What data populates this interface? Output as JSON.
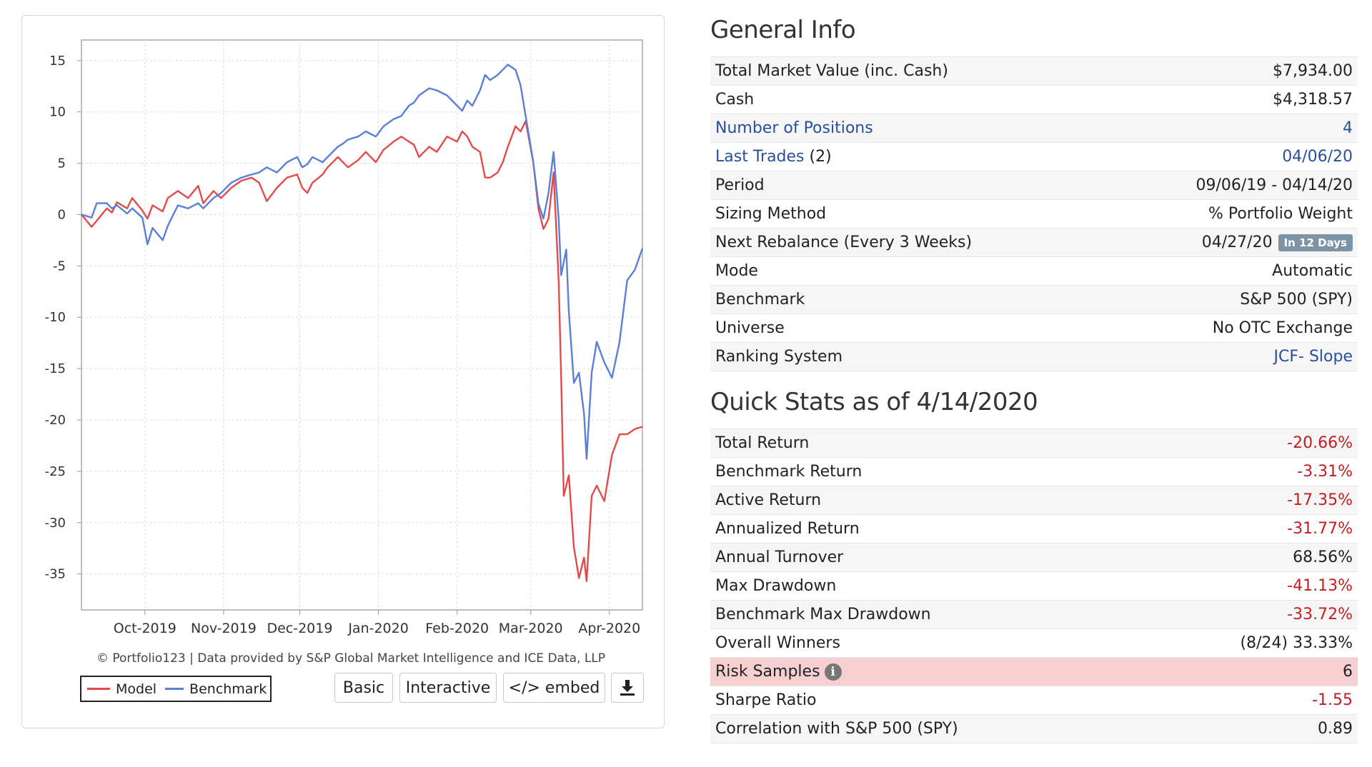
{
  "chart_data": {
    "type": "line",
    "x_tick_labels": [
      "Oct-2019",
      "Nov-2019",
      "Dec-2019",
      "Jan-2020",
      "Feb-2020",
      "Mar-2020",
      "Apr-2020"
    ],
    "y_tick_labels": [
      "15",
      "10",
      "5",
      "0",
      "-5",
      "-10",
      "-15",
      "-20",
      "-25",
      "-30",
      "-35"
    ],
    "ylim": [
      -38.5,
      17
    ],
    "xlim": [
      "2019-09-06",
      "2020-04-14"
    ],
    "grid": true,
    "legend_position": "bottom-left",
    "series": [
      {
        "name": "Model",
        "color": "#e34a4a",
        "points": [
          [
            "2019-09-06",
            0
          ],
          [
            "2019-09-10",
            -1.2
          ],
          [
            "2019-09-12",
            -0.6
          ],
          [
            "2019-09-16",
            0.6
          ],
          [
            "2019-09-18",
            0.2
          ],
          [
            "2019-09-20",
            1.2
          ],
          [
            "2019-09-24",
            0.6
          ],
          [
            "2019-09-26",
            1.6
          ],
          [
            "2019-09-30",
            0.4
          ],
          [
            "2019-10-02",
            -0.4
          ],
          [
            "2019-10-04",
            0.9
          ],
          [
            "2019-10-08",
            0.3
          ],
          [
            "2019-10-10",
            1.6
          ],
          [
            "2019-10-14",
            2.3
          ],
          [
            "2019-10-18",
            1.6
          ],
          [
            "2019-10-22",
            2.8
          ],
          [
            "2019-10-24",
            1.1
          ],
          [
            "2019-10-28",
            2.3
          ],
          [
            "2019-10-31",
            1.6
          ],
          [
            "2019-11-04",
            2.6
          ],
          [
            "2019-11-08",
            3.3
          ],
          [
            "2019-11-12",
            3.6
          ],
          [
            "2019-11-15",
            3.1
          ],
          [
            "2019-11-18",
            1.3
          ],
          [
            "2019-11-22",
            2.6
          ],
          [
            "2019-11-26",
            3.6
          ],
          [
            "2019-11-30",
            3.9
          ],
          [
            "2019-12-02",
            2.6
          ],
          [
            "2019-12-04",
            2.1
          ],
          [
            "2019-12-06",
            3.1
          ],
          [
            "2019-12-10",
            3.9
          ],
          [
            "2019-12-12",
            4.6
          ],
          [
            "2019-12-16",
            5.6
          ],
          [
            "2019-12-18",
            5.1
          ],
          [
            "2019-12-20",
            4.6
          ],
          [
            "2019-12-24",
            5.3
          ],
          [
            "2019-12-27",
            6.1
          ],
          [
            "2019-12-31",
            5.1
          ],
          [
            "2020-01-03",
            6.3
          ],
          [
            "2020-01-07",
            7.1
          ],
          [
            "2020-01-10",
            7.6
          ],
          [
            "2020-01-13",
            7.1
          ],
          [
            "2020-01-15",
            6.8
          ],
          [
            "2020-01-17",
            5.6
          ],
          [
            "2020-01-21",
            6.6
          ],
          [
            "2020-01-24",
            6.1
          ],
          [
            "2020-01-28",
            7.6
          ],
          [
            "2020-02-01",
            7.1
          ],
          [
            "2020-02-03",
            8.1
          ],
          [
            "2020-02-05",
            7.6
          ],
          [
            "2020-02-07",
            6.6
          ],
          [
            "2020-02-10",
            6.1
          ],
          [
            "2020-02-12",
            3.6
          ],
          [
            "2020-02-14",
            3.6
          ],
          [
            "2020-02-17",
            4.1
          ],
          [
            "2020-02-19",
            5.1
          ],
          [
            "2020-02-21",
            6.6
          ],
          [
            "2020-02-24",
            8.6
          ],
          [
            "2020-02-26",
            8.1
          ],
          [
            "2020-02-28",
            9.1
          ],
          [
            "2020-03-02",
            5.1
          ],
          [
            "2020-03-04",
            0.6
          ],
          [
            "2020-03-06",
            -1.4
          ],
          [
            "2020-03-08",
            -0.4
          ],
          [
            "2020-03-10",
            4.1
          ],
          [
            "2020-03-12",
            -6.4
          ],
          [
            "2020-03-13",
            -15.9
          ],
          [
            "2020-03-14",
            -27.4
          ],
          [
            "2020-03-16",
            -25.4
          ],
          [
            "2020-03-18",
            -32.4
          ],
          [
            "2020-03-20",
            -35.4
          ],
          [
            "2020-03-22",
            -33.4
          ],
          [
            "2020-03-23",
            -35.7
          ],
          [
            "2020-03-25",
            -27.4
          ],
          [
            "2020-03-27",
            -26.4
          ],
          [
            "2020-03-30",
            -27.9
          ],
          [
            "2020-04-02",
            -23.4
          ],
          [
            "2020-04-05",
            -21.4
          ],
          [
            "2020-04-08",
            -21.4
          ],
          [
            "2020-04-11",
            -20.9
          ],
          [
            "2020-04-14",
            -20.66
          ]
        ]
      },
      {
        "name": "Benchmark",
        "color": "#5b7fd6",
        "points": [
          [
            "2019-09-06",
            0
          ],
          [
            "2019-09-10",
            -0.3
          ],
          [
            "2019-09-12",
            1.1
          ],
          [
            "2019-09-16",
            1.1
          ],
          [
            "2019-09-18",
            0.6
          ],
          [
            "2019-09-20",
            0.9
          ],
          [
            "2019-09-24",
            0.1
          ],
          [
            "2019-09-26",
            0.6
          ],
          [
            "2019-09-30",
            -0.3
          ],
          [
            "2019-10-02",
            -2.9
          ],
          [
            "2019-10-04",
            -1.3
          ],
          [
            "2019-10-08",
            -2.5
          ],
          [
            "2019-10-10",
            -1.1
          ],
          [
            "2019-10-14",
            0.9
          ],
          [
            "2019-10-18",
            0.6
          ],
          [
            "2019-10-22",
            1.1
          ],
          [
            "2019-10-24",
            0.6
          ],
          [
            "2019-10-28",
            1.6
          ],
          [
            "2019-10-31",
            2.1
          ],
          [
            "2019-11-04",
            3.1
          ],
          [
            "2019-11-08",
            3.6
          ],
          [
            "2019-11-12",
            3.9
          ],
          [
            "2019-11-15",
            4.1
          ],
          [
            "2019-11-18",
            4.6
          ],
          [
            "2019-11-22",
            4.1
          ],
          [
            "2019-11-26",
            5.1
          ],
          [
            "2019-11-30",
            5.6
          ],
          [
            "2019-12-02",
            4.6
          ],
          [
            "2019-12-04",
            4.9
          ],
          [
            "2019-12-06",
            5.6
          ],
          [
            "2019-12-10",
            5.1
          ],
          [
            "2019-12-12",
            5.6
          ],
          [
            "2019-12-16",
            6.6
          ],
          [
            "2019-12-18",
            6.9
          ],
          [
            "2019-12-20",
            7.3
          ],
          [
            "2019-12-24",
            7.6
          ],
          [
            "2019-12-27",
            8.1
          ],
          [
            "2019-12-31",
            7.6
          ],
          [
            "2020-01-03",
            8.6
          ],
          [
            "2020-01-07",
            9.3
          ],
          [
            "2020-01-10",
            9.6
          ],
          [
            "2020-01-13",
            10.6
          ],
          [
            "2020-01-15",
            10.9
          ],
          [
            "2020-01-17",
            11.6
          ],
          [
            "2020-01-21",
            12.3
          ],
          [
            "2020-01-24",
            12.1
          ],
          [
            "2020-01-28",
            11.6
          ],
          [
            "2020-02-01",
            10.6
          ],
          [
            "2020-02-03",
            10.1
          ],
          [
            "2020-02-05",
            11.1
          ],
          [
            "2020-02-07",
            10.6
          ],
          [
            "2020-02-10",
            12.1
          ],
          [
            "2020-02-12",
            13.6
          ],
          [
            "2020-02-14",
            13.1
          ],
          [
            "2020-02-17",
            13.6
          ],
          [
            "2020-02-19",
            14.1
          ],
          [
            "2020-02-21",
            14.6
          ],
          [
            "2020-02-24",
            14.1
          ],
          [
            "2020-02-26",
            12.6
          ],
          [
            "2020-02-28",
            9.6
          ],
          [
            "2020-03-02",
            5.1
          ],
          [
            "2020-03-04",
            1.1
          ],
          [
            "2020-03-06",
            -0.4
          ],
          [
            "2020-03-08",
            2.1
          ],
          [
            "2020-03-10",
            6.1
          ],
          [
            "2020-03-12",
            -0.4
          ],
          [
            "2020-03-13",
            -5.9
          ],
          [
            "2020-03-15",
            -3.4
          ],
          [
            "2020-03-16",
            -9.4
          ],
          [
            "2020-03-18",
            -16.4
          ],
          [
            "2020-03-20",
            -15.4
          ],
          [
            "2020-03-22",
            -19.4
          ],
          [
            "2020-03-23",
            -23.8
          ],
          [
            "2020-03-25",
            -15.4
          ],
          [
            "2020-03-27",
            -12.4
          ],
          [
            "2020-03-30",
            -14.4
          ],
          [
            "2020-04-02",
            -15.9
          ],
          [
            "2020-04-05",
            -12.4
          ],
          [
            "2020-04-08",
            -6.4
          ],
          [
            "2020-04-11",
            -5.4
          ],
          [
            "2020-04-14",
            -3.31
          ]
        ]
      }
    ]
  },
  "chart_footer": {
    "credit": "© Portfolio123 | Data provided by S&P Global Market Intelligence and ICE Data, LLP",
    "buttons": {
      "basic": "Basic",
      "interactive": "Interactive",
      "embed": "</> embed",
      "download_icon": "download-icon"
    }
  },
  "general_info": {
    "title": "General Info",
    "rows": [
      {
        "label": "Total Market Value (inc. Cash)",
        "value": "$7,934.00"
      },
      {
        "label": "Cash",
        "value": "$4,318.57"
      },
      {
        "label": "Number of Positions",
        "value": "4"
      },
      {
        "label": "Last Trades",
        "label_suffix": " (2)",
        "value": "04/06/20"
      },
      {
        "label": "Period",
        "value": "09/06/19 - 04/14/20"
      },
      {
        "label": "Sizing Method",
        "value": "% Portfolio Weight"
      },
      {
        "label": "Next Rebalance (Every 3 Weeks)",
        "value": "04/27/20",
        "badge": "In 12 Days"
      },
      {
        "label": "Mode",
        "value": "Automatic"
      },
      {
        "label": "Benchmark",
        "value": "S&P 500 (SPY)"
      },
      {
        "label": "Universe",
        "value": "No OTC Exchange"
      },
      {
        "label": "Ranking System",
        "value": "JCF- Slope"
      }
    ]
  },
  "quick_stats": {
    "title": "Quick Stats as of 4/14/2020",
    "rows": [
      {
        "label": "Total Return",
        "value": "-20.66%"
      },
      {
        "label": "Benchmark Return",
        "value": "-3.31%"
      },
      {
        "label": "Active Return",
        "value": "-17.35%"
      },
      {
        "label": "Annualized Return",
        "value": "-31.77%"
      },
      {
        "label": "Annual Turnover",
        "value": "68.56%"
      },
      {
        "label": "Max Drawdown",
        "value": "-41.13%"
      },
      {
        "label": "Benchmark Max Drawdown",
        "value": "-33.72%"
      },
      {
        "label": "Overall Winners",
        "value": "(8/24) 33.33%"
      },
      {
        "label": "Risk Samples",
        "value": "6",
        "icon": "info-icon",
        "highlight_color": "#f6d0d0"
      },
      {
        "label": "Sharpe Ratio",
        "value": "-1.55"
      },
      {
        "label": "Correlation with S&P 500 (SPY)",
        "value": "0.89"
      }
    ]
  },
  "colors": {
    "link": "#2a4f9a",
    "negative": "#c22020",
    "badge": "#7d93a6"
  }
}
